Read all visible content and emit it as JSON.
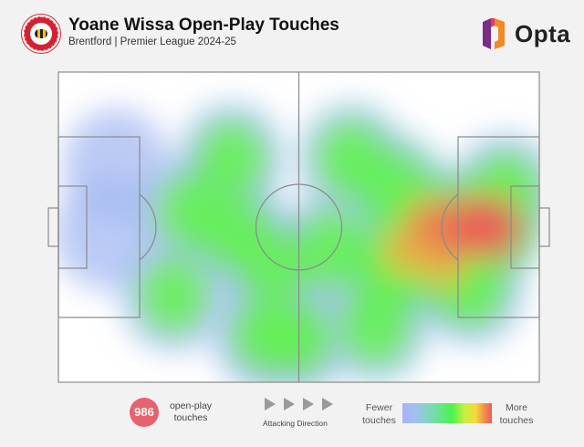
{
  "header": {
    "title": "Yoane Wissa Open-Play Touches",
    "subtitle": "Brentford | Premier League 2024-25",
    "brand": "Opta",
    "brand_color": "#d5202f"
  },
  "footer": {
    "touch_count": "986",
    "touch_count_label_line1": "open-play",
    "touch_count_label_line2": "touches",
    "direction_label": "Attacking Direction",
    "legend_low_line1": "Fewer",
    "legend_low_line2": "touches",
    "legend_high_line1": "More",
    "legend_high_line2": "touches",
    "count_color": "#e8616e"
  },
  "chart_data": {
    "type": "heatmap",
    "title": "Yoane Wissa Open-Play Touches",
    "subtitle": "Brentford | Premier League 2024-25",
    "x_range": [
      0,
      100
    ],
    "y_range": [
      0,
      100
    ],
    "attacking_direction": "left-to-right",
    "total_touches": 986,
    "color_scale": [
      "#a8b4f4",
      "#9fc0ee",
      "#6fe0a0",
      "#4cf24c",
      "#c8f040",
      "#f5d93a",
      "#f28a4e",
      "#ee5a5a"
    ],
    "density_peaks": [
      {
        "x": 90,
        "y": 50,
        "intensity": 1.0
      },
      {
        "x": 84,
        "y": 50,
        "intensity": 0.9
      },
      {
        "x": 77,
        "y": 49,
        "intensity": 0.7
      },
      {
        "x": 72,
        "y": 58,
        "intensity": 0.55
      },
      {
        "x": 69,
        "y": 64,
        "intensity": 0.45
      },
      {
        "x": 80,
        "y": 62,
        "intensity": 0.55
      },
      {
        "x": 70,
        "y": 38,
        "intensity": 0.45
      },
      {
        "x": 61,
        "y": 28,
        "intensity": 0.4
      },
      {
        "x": 66,
        "y": 82,
        "intensity": 0.4
      },
      {
        "x": 57,
        "y": 57,
        "intensity": 0.4
      },
      {
        "x": 45,
        "y": 63,
        "intensity": 0.38
      },
      {
        "x": 37,
        "y": 52,
        "intensity": 0.4
      },
      {
        "x": 36,
        "y": 28,
        "intensity": 0.38
      },
      {
        "x": 28,
        "y": 45,
        "intensity": 0.38
      },
      {
        "x": 24,
        "y": 72,
        "intensity": 0.35
      },
      {
        "x": 43,
        "y": 85,
        "intensity": 0.3
      },
      {
        "x": 50,
        "y": 86,
        "intensity": 0.3
      },
      {
        "x": 93,
        "y": 38,
        "intensity": 0.35
      },
      {
        "x": 86,
        "y": 70,
        "intensity": 0.35
      },
      {
        "x": 10,
        "y": 52,
        "intensity": 0.15
      },
      {
        "x": 12,
        "y": 30,
        "intensity": 0.12
      }
    ]
  }
}
